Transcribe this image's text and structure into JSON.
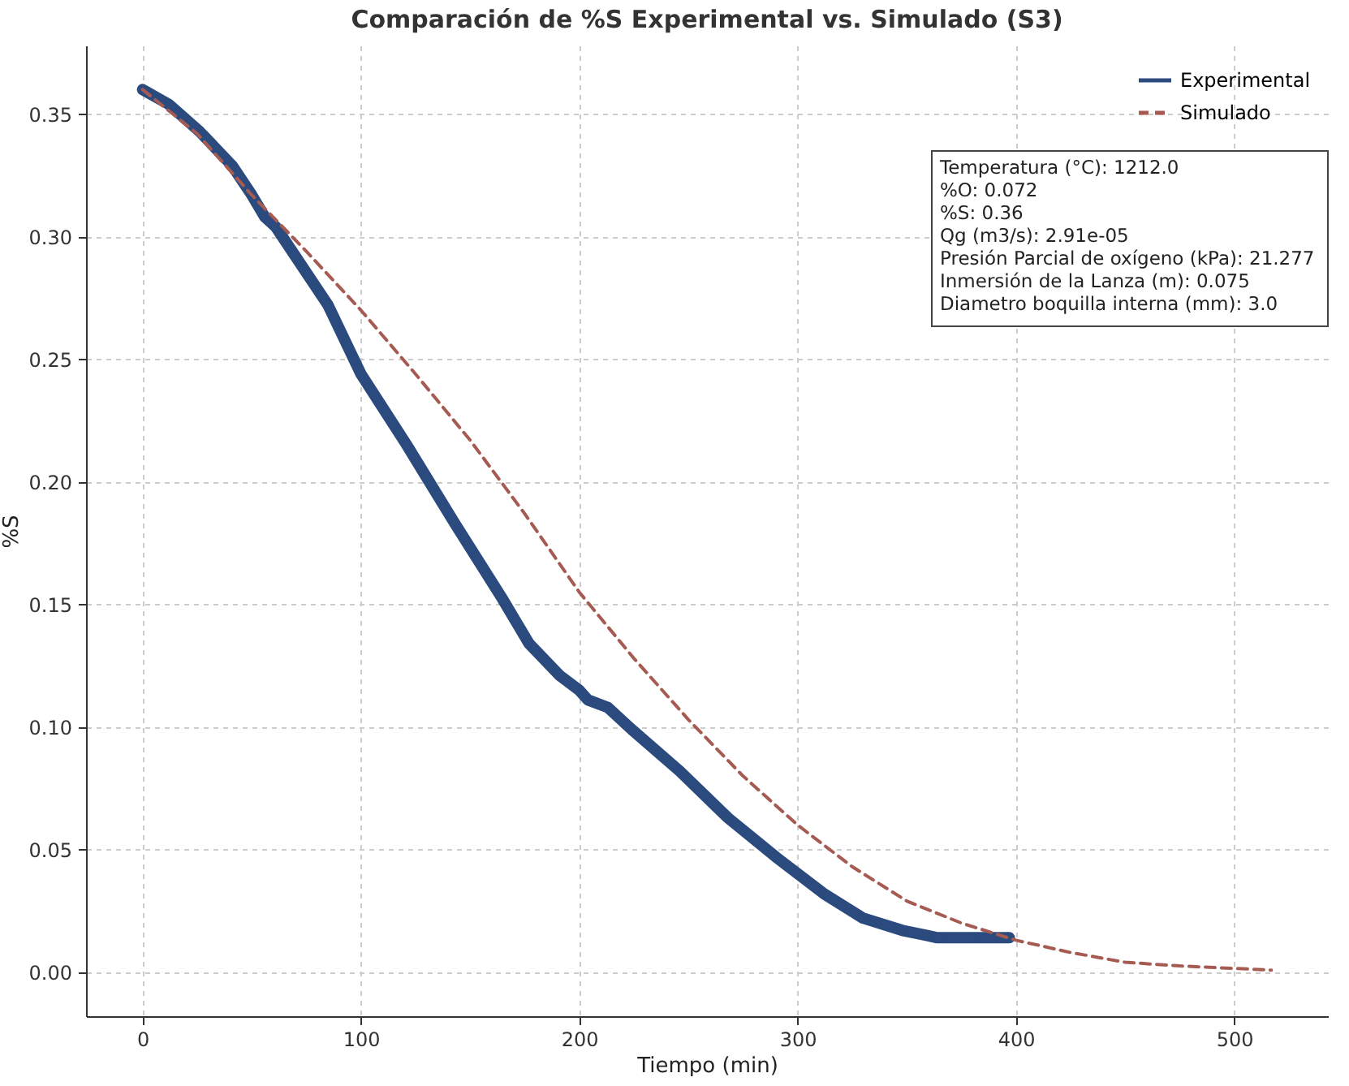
{
  "chart_data": {
    "type": "line",
    "title": "Comparación de %S Experimental vs. Simulado (S3)",
    "xlabel": "Tiempo (min)",
    "ylabel": "%S",
    "xlim": [
      -25.9,
      542.9
    ],
    "xticks": [
      0,
      100,
      200,
      300,
      400,
      500
    ],
    "ylim": [
      -0.018,
      0.378
    ],
    "yticks": [
      {
        "value": 0,
        "label": "0.00"
      },
      {
        "value": 0.05,
        "label": "0.05"
      },
      {
        "value": 0.1,
        "label": "0.10"
      },
      {
        "value": 0.15,
        "label": "0.15"
      },
      {
        "value": 0.2,
        "label": "0.20"
      },
      {
        "value": 0.25,
        "label": "0.25"
      },
      {
        "value": 0.3,
        "label": "0.30"
      },
      {
        "value": 0.35,
        "label": "0.35"
      }
    ],
    "grid": true,
    "legend": "top right",
    "series": [
      {
        "name": "Experimental",
        "color": "#2b4a7e",
        "marker": "circle",
        "line_style": "solid",
        "x": [
          0,
          12,
          26,
          41,
          50,
          56,
          61,
          70,
          85,
          100,
          121,
          143,
          165,
          177,
          191,
          200,
          204,
          213,
          224,
          246,
          268,
          290,
          312,
          330,
          348,
          359,
          364,
          380,
          397
        ],
        "values": [
          0.36,
          0.354,
          0.343,
          0.329,
          0.317,
          0.308,
          0.304,
          0.292,
          0.272,
          0.244,
          0.215,
          0.183,
          0.152,
          0.134,
          0.121,
          0.115,
          0.111,
          0.108,
          0.099,
          0.082,
          0.063,
          0.047,
          0.032,
          0.022,
          0.017,
          0.015,
          0.014,
          0.014,
          0.014
        ]
      },
      {
        "name": "Simulado",
        "color": "#a65b52",
        "marker": "none",
        "line_style": "dashed",
        "x": [
          0,
          25,
          50,
          75,
          100,
          125,
          150,
          175,
          200,
          225,
          250,
          275,
          300,
          325,
          350,
          375,
          400,
          425,
          450,
          475,
          500,
          517
        ],
        "values": [
          0.36,
          0.342,
          0.317,
          0.294,
          0.27,
          0.244,
          0.217,
          0.187,
          0.155,
          0.128,
          0.103,
          0.08,
          0.06,
          0.043,
          0.029,
          0.02,
          0.013,
          0.008,
          0.004,
          0.0025,
          0.0015,
          0.0008
        ]
      }
    ],
    "annotations": [
      "Temperatura (°C): 1212.0",
      "%O: 0.072",
      "%S: 0.36",
      "Qg (m3/s): 2.91e-05",
      "Presión Parcial de oxígeno (kPa): 21.277",
      "Inmersión de la Lanza (m): 0.075",
      "Diametro boquilla interna (mm): 3.0"
    ]
  }
}
